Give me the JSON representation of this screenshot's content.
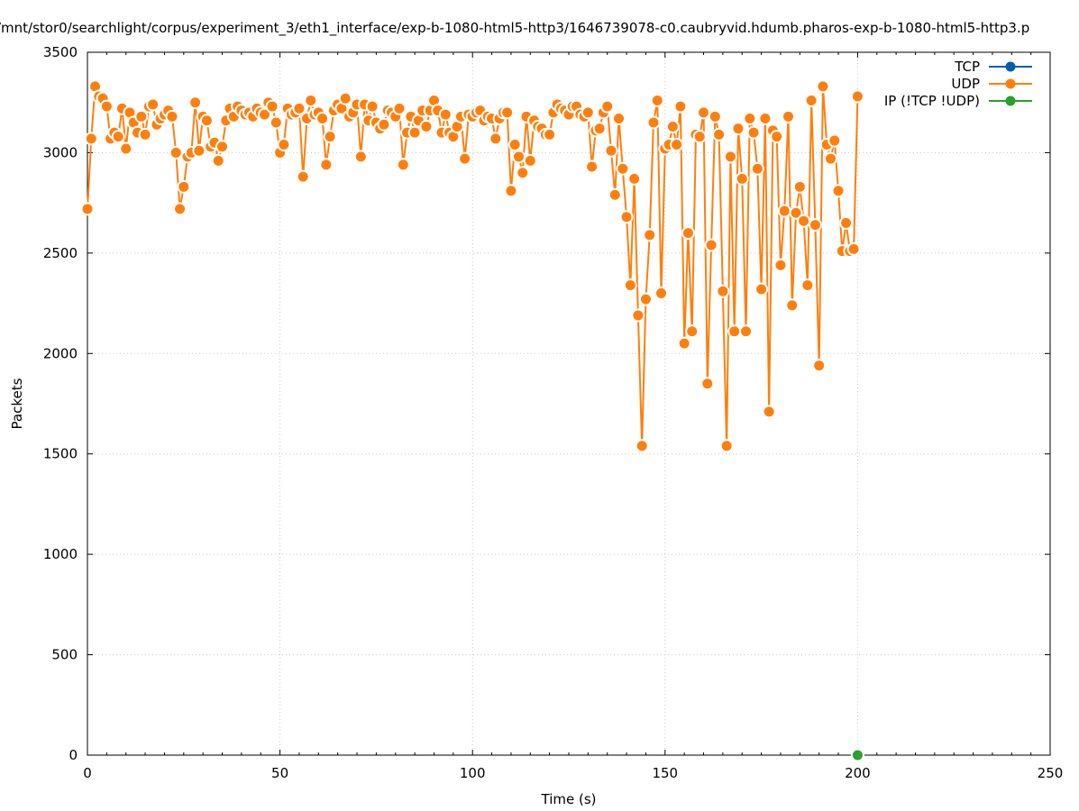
{
  "chart_data": {
    "type": "line",
    "title": "/mnt/stor0/searchlight/corpus/experiment_3/eth1_interface/exp-b-1080-html5-http3/1646739078-c0.caubryvid.hdumb.pharos-exp-b-1080-html5-http3.p",
    "xlabel": "Time (s)",
    "ylabel": "Packets",
    "xlim": [
      0,
      250
    ],
    "ylim": [
      0,
      3500
    ],
    "xticks": [
      0,
      50,
      100,
      150,
      200,
      250
    ],
    "yticks": [
      0,
      500,
      1000,
      1500,
      2000,
      2500,
      3000,
      3500
    ],
    "grid": true,
    "legend_position": "top-right",
    "series": [
      {
        "name": "TCP",
        "color": "#0060ad",
        "x": [],
        "y": []
      },
      {
        "name": "UDP",
        "color": "#ff7f0e",
        "x": [
          0,
          1,
          2,
          3,
          4,
          5,
          6,
          7,
          8,
          9,
          10,
          11,
          12,
          13,
          14,
          15,
          16,
          17,
          18,
          19,
          20,
          21,
          22,
          23,
          24,
          25,
          26,
          27,
          28,
          29,
          30,
          31,
          32,
          33,
          34,
          35,
          36,
          37,
          38,
          39,
          40,
          41,
          42,
          43,
          44,
          45,
          46,
          47,
          48,
          49,
          50,
          51,
          52,
          53,
          54,
          55,
          56,
          57,
          58,
          59,
          60,
          61,
          62,
          63,
          64,
          65,
          66,
          67,
          68,
          69,
          70,
          71,
          72,
          73,
          74,
          75,
          76,
          77,
          78,
          79,
          80,
          81,
          82,
          83,
          84,
          85,
          86,
          87,
          88,
          89,
          90,
          91,
          92,
          93,
          94,
          95,
          96,
          97,
          98,
          99,
          100,
          101,
          102,
          103,
          104,
          105,
          106,
          107,
          108,
          109,
          110,
          111,
          112,
          113,
          114,
          115,
          116,
          117,
          118,
          119,
          120,
          121,
          122,
          123,
          124,
          125,
          126,
          127,
          128,
          129,
          130,
          131,
          132,
          133,
          134,
          135,
          136,
          137,
          138,
          139,
          140,
          141,
          142,
          143,
          144,
          145,
          146,
          147,
          148,
          149,
          150,
          151,
          152,
          153,
          154,
          155,
          156,
          157,
          158,
          159,
          160,
          161,
          162,
          163,
          164,
          165,
          166,
          167,
          168,
          169,
          170,
          171,
          172,
          173,
          174,
          175,
          176,
          177,
          178,
          179,
          180,
          181,
          182,
          183,
          184,
          185,
          186,
          187,
          188,
          189,
          190,
          191,
          192,
          193,
          194,
          195,
          196,
          197,
          198,
          199,
          200
        ],
        "y": [
          2720,
          3070,
          3330,
          3280,
          3270,
          3230,
          3070,
          3100,
          3080,
          3220,
          3020,
          3200,
          3150,
          3100,
          3180,
          3090,
          3230,
          3240,
          3140,
          3170,
          3190,
          3210,
          3180,
          3000,
          2720,
          2830,
          2980,
          3000,
          3250,
          3010,
          3180,
          3160,
          3030,
          3050,
          2960,
          3030,
          3160,
          3220,
          3180,
          3230,
          3210,
          3190,
          3200,
          3180,
          3220,
          3200,
          3190,
          3250,
          3230,
          3150,
          3000,
          3040,
          3220,
          3190,
          3200,
          3220,
          2880,
          3170,
          3260,
          3190,
          3200,
          3170,
          2940,
          3080,
          3210,
          3240,
          3220,
          3270,
          3180,
          3200,
          3240,
          2980,
          3240,
          3160,
          3230,
          3150,
          3120,
          3140,
          3210,
          3200,
          3180,
          3220,
          2940,
          3100,
          3180,
          3100,
          3160,
          3210,
          3130,
          3210,
          3260,
          3210,
          3100,
          3190,
          3100,
          3080,
          3130,
          3180,
          2970,
          3190,
          3180,
          3200,
          3210,
          3160,
          3180,
          3170,
          3070,
          3170,
          3200,
          3200,
          2810,
          3040,
          2980,
          2900,
          3180,
          2960,
          3160,
          3130,
          3120,
          3090,
          3090,
          3200,
          3240,
          3220,
          3210,
          3190,
          3230,
          3230,
          3190,
          3180,
          3200,
          2930,
          3110,
          3120,
          3200,
          3230,
          3010,
          2790,
          3170,
          2920,
          2680,
          2340,
          2870,
          2190,
          1540,
          2270,
          2590,
          3150,
          3260,
          2300,
          3020,
          3040,
          3130,
          3040,
          3230,
          2050,
          2600,
          2110,
          3090,
          3080,
          3200,
          1850,
          2540,
          3180,
          3090,
          2310,
          1540,
          2980,
          2110,
          3120,
          2870,
          2110,
          3170,
          3100,
          2920,
          2320,
          3170,
          1710,
          3110,
          3080,
          2440,
          2710,
          3180,
          2240,
          2700,
          2830,
          2660,
          2340,
          3260,
          2640,
          1940,
          3330,
          3040,
          2970,
          3060,
          2810,
          2510,
          2650,
          2510,
          2520,
          3280
        ]
      },
      {
        "name": "IP (!TCP  !UDP)",
        "color": "#2ca02c",
        "x": [
          200
        ],
        "y": [
          0
        ]
      }
    ]
  }
}
